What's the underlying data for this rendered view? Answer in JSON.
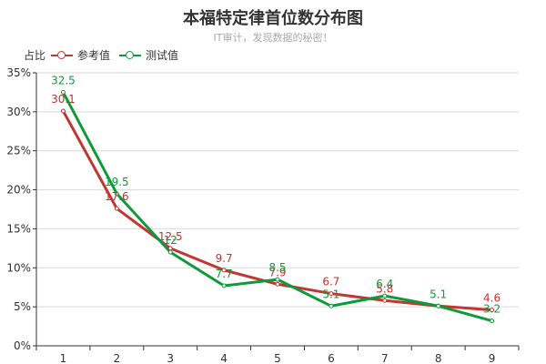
{
  "chart_data": {
    "type": "line",
    "title": "本福特定律首位数分布图",
    "subtitle": "IT审计，发现数据的秘密！",
    "ylabel": "占比",
    "xlabel": "",
    "categories": [
      "1",
      "2",
      "3",
      "4",
      "5",
      "6",
      "7",
      "8",
      "9"
    ],
    "ylim": [
      0,
      35
    ],
    "yticks": [
      0,
      5,
      10,
      15,
      20,
      25,
      30,
      35
    ],
    "ytick_labels": [
      "0%",
      "5%",
      "10%",
      "15%",
      "20%",
      "25%",
      "30%",
      "35%"
    ],
    "grid": true,
    "legend_position": "top-left",
    "series": [
      {
        "name": "参考值",
        "color": "#c23531",
        "values": [
          30.1,
          17.6,
          12.5,
          9.7,
          7.9,
          6.7,
          5.8,
          5.1,
          4.6
        ],
        "labels": [
          "30.1",
          "17.6",
          "12.5",
          "9.7",
          "7.9",
          "6.7",
          "5.8",
          "",
          "4.6"
        ]
      },
      {
        "name": "测试值",
        "color": "#0f9a3a",
        "values": [
          32.5,
          19.5,
          12,
          7.7,
          8.5,
          5.1,
          6.4,
          5.1,
          3.2
        ],
        "labels": [
          "32.5",
          "19.5",
          "12",
          "7.7",
          "8.5",
          "5.1",
          "6.4",
          "5.1",
          "3.2"
        ]
      }
    ]
  }
}
